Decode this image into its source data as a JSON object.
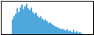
{
  "chart_data": {
    "type": "bar",
    "categories": [
      null,
      null,
      null,
      null,
      null,
      null,
      null,
      null,
      null,
      null,
      null,
      null,
      null,
      null,
      null,
      null,
      null,
      null,
      null,
      null,
      null,
      null,
      null,
      null,
      null,
      null,
      null,
      null,
      null,
      null,
      null,
      null,
      null,
      null,
      null,
      null,
      null,
      null,
      null,
      null,
      null,
      null,
      null,
      null,
      null
    ],
    "values": [
      40,
      48,
      55,
      70,
      60,
      72,
      80,
      68,
      75,
      82,
      70,
      65,
      72,
      60,
      55,
      58,
      50,
      45,
      48,
      42,
      38,
      40,
      35,
      30,
      32,
      28,
      25,
      22,
      20,
      18,
      16,
      14,
      15,
      12,
      10,
      14,
      8,
      10,
      6,
      12,
      5,
      8,
      4,
      6,
      3
    ],
    "color": "#4fa8dc",
    "ylim": [
      0,
      90
    ],
    "tick_labels": false
  }
}
